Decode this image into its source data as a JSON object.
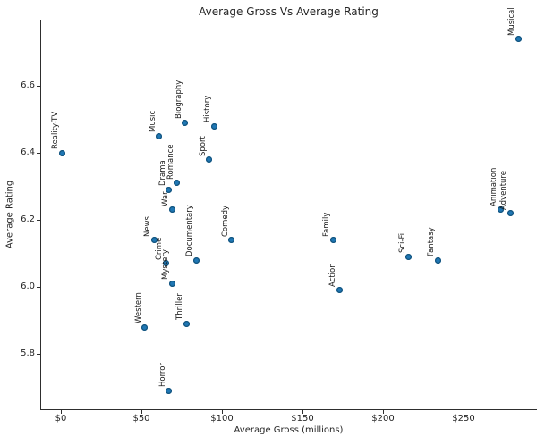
{
  "chart_data": {
    "type": "scatter",
    "title": "Average Gross Vs Average Rating",
    "xlabel": "Average Gross (millions)",
    "ylabel": "Average Rating",
    "marker_color": "#1f77b4",
    "marker_edge_color": "#14547e",
    "axis_color": "#2e2e2e",
    "text_color": "#262626",
    "grid": false,
    "legend": "none",
    "xlim": [
      -13,
      296
    ],
    "ylim": [
      5.63,
      6.8
    ],
    "x_ticks": [
      {
        "value": 0,
        "label": "$0"
      },
      {
        "value": 50,
        "label": "$50"
      },
      {
        "value": 100,
        "label": "$100"
      },
      {
        "value": 150,
        "label": "$150"
      },
      {
        "value": 200,
        "label": "$200"
      },
      {
        "value": 250,
        "label": "$250"
      }
    ],
    "y_ticks": [
      {
        "value": 5.8,
        "label": "5.8"
      },
      {
        "value": 6.0,
        "label": "6.0"
      },
      {
        "value": 6.2,
        "label": "6.2"
      },
      {
        "value": 6.4,
        "label": "6.4"
      },
      {
        "value": 6.6,
        "label": "6.6"
      }
    ],
    "points": [
      {
        "label": "Reality-TV",
        "x": 0.6,
        "y": 6.4
      },
      {
        "label": "Western",
        "x": 52,
        "y": 5.88
      },
      {
        "label": "News",
        "x": 58,
        "y": 6.14
      },
      {
        "label": "Music",
        "x": 61,
        "y": 6.45
      },
      {
        "label": "Crime",
        "x": 65,
        "y": 6.07
      },
      {
        "label": "Drama",
        "x": 67,
        "y": 6.29
      },
      {
        "label": "Horror",
        "x": 67,
        "y": 5.69
      },
      {
        "label": "Mystery",
        "x": 69,
        "y": 6.01
      },
      {
        "label": "War",
        "x": 69,
        "y": 6.23
      },
      {
        "label": "Romance",
        "x": 72,
        "y": 6.31
      },
      {
        "label": "Biography",
        "x": 77,
        "y": 6.49
      },
      {
        "label": "Thriller",
        "x": 78,
        "y": 5.89
      },
      {
        "label": "Documentary",
        "x": 84,
        "y": 6.08
      },
      {
        "label": "Sport",
        "x": 92,
        "y": 6.38
      },
      {
        "label": "History",
        "x": 95,
        "y": 6.48
      },
      {
        "label": "Comedy",
        "x": 106,
        "y": 6.14
      },
      {
        "label": "Family",
        "x": 169,
        "y": 6.14
      },
      {
        "label": "Action",
        "x": 173,
        "y": 5.99
      },
      {
        "label": "Sci-Fi",
        "x": 216,
        "y": 6.09
      },
      {
        "label": "Fantasy",
        "x": 234,
        "y": 6.08
      },
      {
        "label": "Animation",
        "x": 273,
        "y": 6.23
      },
      {
        "label": "Adventure",
        "x": 279,
        "y": 6.22
      },
      {
        "label": "Musical",
        "x": 284,
        "y": 6.74
      }
    ]
  }
}
